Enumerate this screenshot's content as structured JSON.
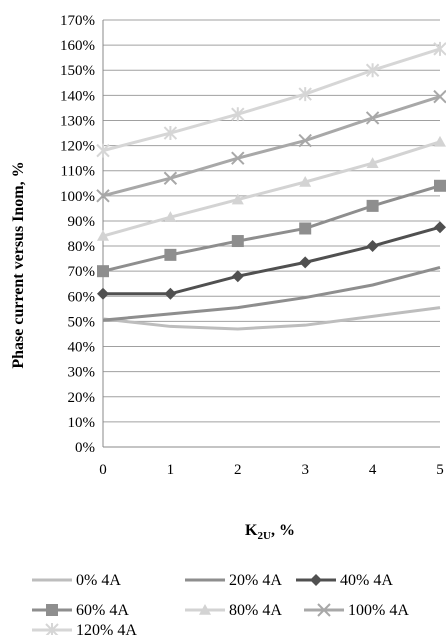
{
  "chart_data": {
    "type": "line",
    "title": "",
    "xlabel": "K",
    "xlabel_sub": "2U",
    "xlabel_suffix": ", %",
    "ylabel": "Phase current versus Inom, %",
    "x": [
      0,
      1,
      2,
      3,
      4,
      5
    ],
    "x_tick_labels": [
      "0",
      "1",
      "2",
      "3",
      "4",
      "5"
    ],
    "ylim": [
      0,
      170
    ],
    "y_tick_step": 10,
    "y_tick_labels": [
      "0%",
      "10%",
      "20%",
      "30%",
      "40%",
      "50%",
      "60%",
      "70%",
      "80%",
      "90%",
      "100%",
      "110%",
      "120%",
      "130%",
      "140%",
      "150%",
      "160%",
      "170%"
    ],
    "grid": true,
    "legend_position": "bottom",
    "series": [
      {
        "name": "0% 4A",
        "values": [
          51,
          48,
          47,
          48.5,
          52,
          55.5
        ],
        "color": "#bdbdbd",
        "marker": "none"
      },
      {
        "name": "20% 4A",
        "values": [
          50.5,
          53,
          55.5,
          59.5,
          64.5,
          71.5
        ],
        "color": "#8e8e8e",
        "marker": "none"
      },
      {
        "name": "40% 4A",
        "values": [
          61,
          61,
          68,
          73.5,
          80,
          87.5
        ],
        "color": "#505050",
        "marker": "diamond"
      },
      {
        "name": "60% 4A",
        "values": [
          70,
          76.5,
          82,
          87,
          96,
          104
        ],
        "color": "#8e8e8e",
        "marker": "square"
      },
      {
        "name": "80% 4A",
        "values": [
          84,
          91.5,
          98.5,
          105.5,
          113,
          121.5
        ],
        "color": "#d3d3d3",
        "marker": "triangle"
      },
      {
        "name": "100% 4A",
        "values": [
          100,
          107,
          115,
          122,
          131,
          139.5
        ],
        "color": "#a8a8a8",
        "marker": "x"
      },
      {
        "name": "120% 4A",
        "values": [
          118,
          125,
          132.5,
          140.5,
          150,
          158.5
        ],
        "color": "#d6d6d6",
        "marker": "star"
      }
    ]
  }
}
